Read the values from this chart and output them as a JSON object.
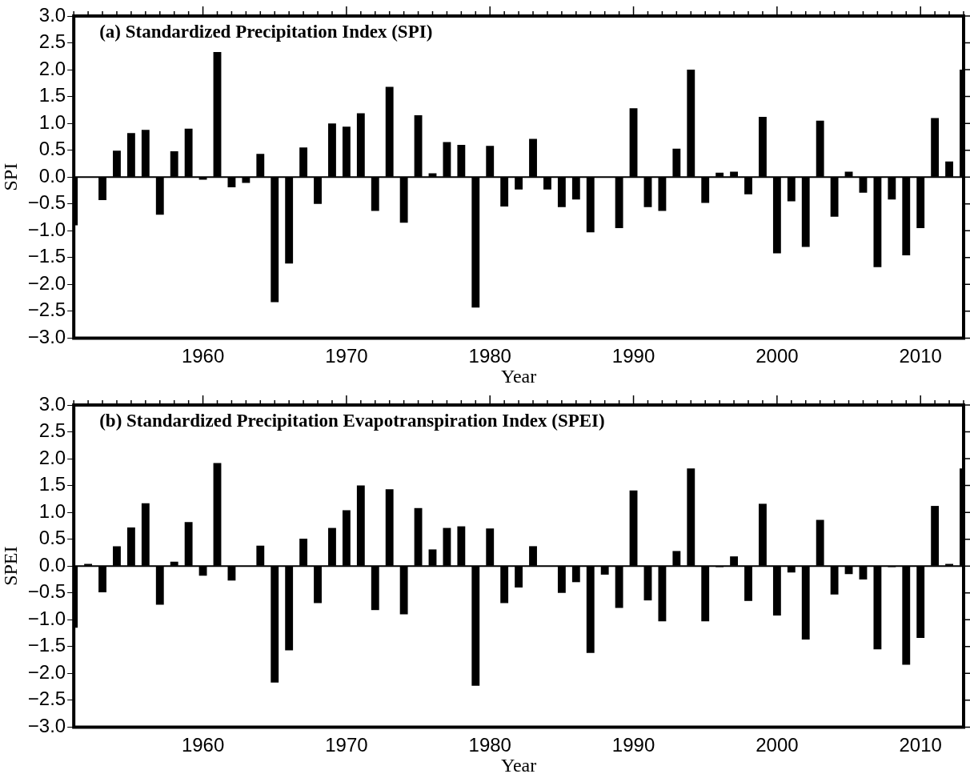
{
  "chart_data": [
    {
      "type": "bar",
      "title": "(a) Standardized Precipitation Index (SPI)",
      "xlabel": "Year",
      "ylabel": "SPI",
      "color": "#000000",
      "x": [
        1951,
        1952,
        1953,
        1954,
        1955,
        1956,
        1957,
        1958,
        1959,
        1960,
        1961,
        1962,
        1963,
        1964,
        1965,
        1966,
        1967,
        1968,
        1969,
        1970,
        1971,
        1972,
        1973,
        1974,
        1975,
        1976,
        1977,
        1978,
        1979,
        1980,
        1981,
        1982,
        1983,
        1984,
        1985,
        1986,
        1987,
        1988,
        1989,
        1990,
        1991,
        1992,
        1993,
        1994,
        1995,
        1996,
        1997,
        1998,
        1999,
        2000,
        2001,
        2002,
        2003,
        2004,
        2005,
        2006,
        2007,
        2008,
        2009,
        2010,
        2011,
        2012,
        2013
      ],
      "values": [
        -0.9,
        0,
        -0.43,
        0.49,
        0.82,
        0.88,
        -0.7,
        0.48,
        0.9,
        -0.05,
        2.33,
        -0.19,
        -0.11,
        0.43,
        -2.33,
        -1.61,
        0.55,
        -0.5,
        1.0,
        0.94,
        1.19,
        -0.63,
        1.68,
        -0.85,
        1.15,
        0.07,
        0.65,
        0.6,
        -2.43,
        0.58,
        -0.55,
        -0.23,
        0.71,
        -0.23,
        -0.56,
        -0.42,
        -1.03,
        0,
        -0.95,
        1.28,
        -0.56,
        -0.63,
        0.53,
        2.0,
        -0.48,
        0.08,
        0.1,
        -0.32,
        1.12,
        -1.42,
        -0.45,
        -1.3,
        1.05,
        -0.74,
        0.1,
        -0.29,
        -1.68,
        -0.42,
        -1.46,
        -0.95,
        1.1,
        0.29,
        2.0
      ],
      "xlim": [
        1951,
        2013
      ],
      "xticks": [
        {
          "value": 1951,
          "label": null
        },
        {
          "value": 1952,
          "label": null
        },
        {
          "value": 1953,
          "label": null
        },
        {
          "value": 1954,
          "label": null
        },
        {
          "value": 1955,
          "label": null
        },
        {
          "value": 1956,
          "label": null
        },
        {
          "value": 1957,
          "label": null
        },
        {
          "value": 1958,
          "label": null
        },
        {
          "value": 1959,
          "label": null
        },
        1960,
        {
          "value": 1961,
          "label": null
        },
        {
          "value": 1962,
          "label": null
        },
        {
          "value": 1963,
          "label": null
        },
        {
          "value": 1964,
          "label": null
        },
        {
          "value": 1965,
          "label": null
        },
        {
          "value": 1966,
          "label": null
        },
        {
          "value": 1967,
          "label": null
        },
        {
          "value": 1968,
          "label": null
        },
        {
          "value": 1969,
          "label": null
        },
        1970,
        {
          "value": 1971,
          "label": null
        },
        {
          "value": 1972,
          "label": null
        },
        {
          "value": 1973,
          "label": null
        },
        {
          "value": 1974,
          "label": null
        },
        {
          "value": 1975,
          "label": null
        },
        {
          "value": 1976,
          "label": null
        },
        {
          "value": 1977,
          "label": null
        },
        {
          "value": 1978,
          "label": null
        },
        {
          "value": 1979,
          "label": null
        },
        1980,
        {
          "value": 1981,
          "label": null
        },
        {
          "value": 1982,
          "label": null
        },
        {
          "value": 1983,
          "label": null
        },
        {
          "value": 1984,
          "label": null
        },
        {
          "value": 1985,
          "label": null
        },
        {
          "value": 1986,
          "label": null
        },
        {
          "value": 1987,
          "label": null
        },
        {
          "value": 1988,
          "label": null
        },
        {
          "value": 1989,
          "label": null
        },
        1990,
        {
          "value": 1991,
          "label": null
        },
        {
          "value": 1992,
          "label": null
        },
        {
          "value": 1993,
          "label": null
        },
        {
          "value": 1994,
          "label": null
        },
        {
          "value": 1995,
          "label": null
        },
        {
          "value": 1996,
          "label": null
        },
        {
          "value": 1997,
          "label": null
        },
        {
          "value": 1998,
          "label": null
        },
        {
          "value": 1999,
          "label": null
        },
        2000,
        {
          "value": 2001,
          "label": null
        },
        {
          "value": 2002,
          "label": null
        },
        {
          "value": 2003,
          "label": null
        },
        {
          "value": 2004,
          "label": null
        },
        {
          "value": 2005,
          "label": null
        },
        {
          "value": 2006,
          "label": null
        },
        {
          "value": 2007,
          "label": null
        },
        {
          "value": 2008,
          "label": null
        },
        {
          "value": 2009,
          "label": null
        },
        2010,
        {
          "value": 2011,
          "label": null
        },
        {
          "value": 2012,
          "label": null
        },
        {
          "value": 2013,
          "label": null
        }
      ],
      "ylim": [
        -3,
        3
      ],
      "yticks": [
        {
          "value": -3,
          "label": "−3.0"
        },
        {
          "value": -2.5,
          "label": "−2.5"
        },
        {
          "value": -2,
          "label": "−2.0"
        },
        {
          "value": -1.5,
          "label": "−1.5"
        },
        {
          "value": -1,
          "label": "−1.0"
        },
        {
          "value": -0.5,
          "label": "−0.5"
        },
        {
          "value": 0,
          "label": "0.0"
        },
        {
          "value": 0.5,
          "label": "0.5"
        },
        {
          "value": 1,
          "label": "1.0"
        },
        {
          "value": 1.5,
          "label": "1.5"
        },
        {
          "value": 2,
          "label": "2.0"
        },
        {
          "value": 2.5,
          "label": "2.5"
        },
        {
          "value": 3,
          "label": "3.0"
        }
      ]
    },
    {
      "type": "bar",
      "title": "(b) Standardized Precipitation Evapotranspiration Index (SPEI)",
      "xlabel": "Year",
      "ylabel": "SPEI",
      "color": "#000000",
      "x": [
        1951,
        1952,
        1953,
        1954,
        1955,
        1956,
        1957,
        1958,
        1959,
        1960,
        1961,
        1962,
        1963,
        1964,
        1965,
        1966,
        1967,
        1968,
        1969,
        1970,
        1971,
        1972,
        1973,
        1974,
        1975,
        1976,
        1977,
        1978,
        1979,
        1980,
        1981,
        1982,
        1983,
        1984,
        1985,
        1986,
        1987,
        1988,
        1989,
        1990,
        1991,
        1992,
        1993,
        1994,
        1995,
        1996,
        1997,
        1998,
        1999,
        2000,
        2001,
        2002,
        2003,
        2004,
        2005,
        2006,
        2007,
        2008,
        2009,
        2010,
        2011,
        2012,
        2013
      ],
      "values": [
        -1.15,
        0.04,
        -0.49,
        0.37,
        0.72,
        1.17,
        -0.72,
        0.08,
        0.82,
        -0.18,
        1.92,
        -0.27,
        0,
        0.38,
        -2.17,
        -1.57,
        0.51,
        -0.69,
        0.71,
        1.04,
        1.5,
        -0.82,
        1.43,
        -0.9,
        1.08,
        0.31,
        0.71,
        0.74,
        -2.23,
        0.7,
        -0.69,
        -0.4,
        0.37,
        0,
        -0.5,
        -0.3,
        -1.62,
        -0.16,
        -0.78,
        1.41,
        -0.64,
        -1.03,
        0.28,
        1.82,
        -1.03,
        -0.02,
        0.18,
        -0.65,
        1.16,
        -0.92,
        -0.12,
        -1.37,
        0.86,
        -0.53,
        -0.15,
        -0.25,
        -1.55,
        -0.02,
        -1.84,
        -1.34,
        1.12,
        0.04,
        1.82
      ],
      "xlim": [
        1951,
        2013
      ],
      "xticks": [
        {
          "value": 1951,
          "label": null
        },
        {
          "value": 1952,
          "label": null
        },
        {
          "value": 1953,
          "label": null
        },
        {
          "value": 1954,
          "label": null
        },
        {
          "value": 1955,
          "label": null
        },
        {
          "value": 1956,
          "label": null
        },
        {
          "value": 1957,
          "label": null
        },
        {
          "value": 1958,
          "label": null
        },
        {
          "value": 1959,
          "label": null
        },
        1960,
        {
          "value": 1961,
          "label": null
        },
        {
          "value": 1962,
          "label": null
        },
        {
          "value": 1963,
          "label": null
        },
        {
          "value": 1964,
          "label": null
        },
        {
          "value": 1965,
          "label": null
        },
        {
          "value": 1966,
          "label": null
        },
        {
          "value": 1967,
          "label": null
        },
        {
          "value": 1968,
          "label": null
        },
        {
          "value": 1969,
          "label": null
        },
        1970,
        {
          "value": 1971,
          "label": null
        },
        {
          "value": 1972,
          "label": null
        },
        {
          "value": 1973,
          "label": null
        },
        {
          "value": 1974,
          "label": null
        },
        {
          "value": 1975,
          "label": null
        },
        {
          "value": 1976,
          "label": null
        },
        {
          "value": 1977,
          "label": null
        },
        {
          "value": 1978,
          "label": null
        },
        {
          "value": 1979,
          "label": null
        },
        1980,
        {
          "value": 1981,
          "label": null
        },
        {
          "value": 1982,
          "label": null
        },
        {
          "value": 1983,
          "label": null
        },
        {
          "value": 1984,
          "label": null
        },
        {
          "value": 1985,
          "label": null
        },
        {
          "value": 1986,
          "label": null
        },
        {
          "value": 1987,
          "label": null
        },
        {
          "value": 1988,
          "label": null
        },
        {
          "value": 1989,
          "label": null
        },
        1990,
        {
          "value": 1991,
          "label": null
        },
        {
          "value": 1992,
          "label": null
        },
        {
          "value": 1993,
          "label": null
        },
        {
          "value": 1994,
          "label": null
        },
        {
          "value": 1995,
          "label": null
        },
        {
          "value": 1996,
          "label": null
        },
        {
          "value": 1997,
          "label": null
        },
        {
          "value": 1998,
          "label": null
        },
        {
          "value": 1999,
          "label": null
        },
        2000,
        {
          "value": 2001,
          "label": null
        },
        {
          "value": 2002,
          "label": null
        },
        {
          "value": 2003,
          "label": null
        },
        {
          "value": 2004,
          "label": null
        },
        {
          "value": 2005,
          "label": null
        },
        {
          "value": 2006,
          "label": null
        },
        {
          "value": 2007,
          "label": null
        },
        {
          "value": 2008,
          "label": null
        },
        {
          "value": 2009,
          "label": null
        },
        2010,
        {
          "value": 2011,
          "label": null
        },
        {
          "value": 2012,
          "label": null
        },
        {
          "value": 2013,
          "label": null
        }
      ],
      "ylim": [
        -3,
        3
      ],
      "yticks": [
        {
          "value": -3,
          "label": "−3.0"
        },
        {
          "value": -2.5,
          "label": "−2.5"
        },
        {
          "value": -2,
          "label": "−2.0"
        },
        {
          "value": -1.5,
          "label": "−1.5"
        },
        {
          "value": -1,
          "label": "−1.0"
        },
        {
          "value": -0.5,
          "label": "−0.5"
        },
        {
          "value": 0,
          "label": "0.0"
        },
        {
          "value": 0.5,
          "label": "0.5"
        },
        {
          "value": 1,
          "label": "1.0"
        },
        {
          "value": 1.5,
          "label": "1.5"
        },
        {
          "value": 2,
          "label": "2.0"
        },
        {
          "value": 2.5,
          "label": "2.5"
        },
        {
          "value": 3,
          "label": "3.0"
        }
      ]
    }
  ]
}
